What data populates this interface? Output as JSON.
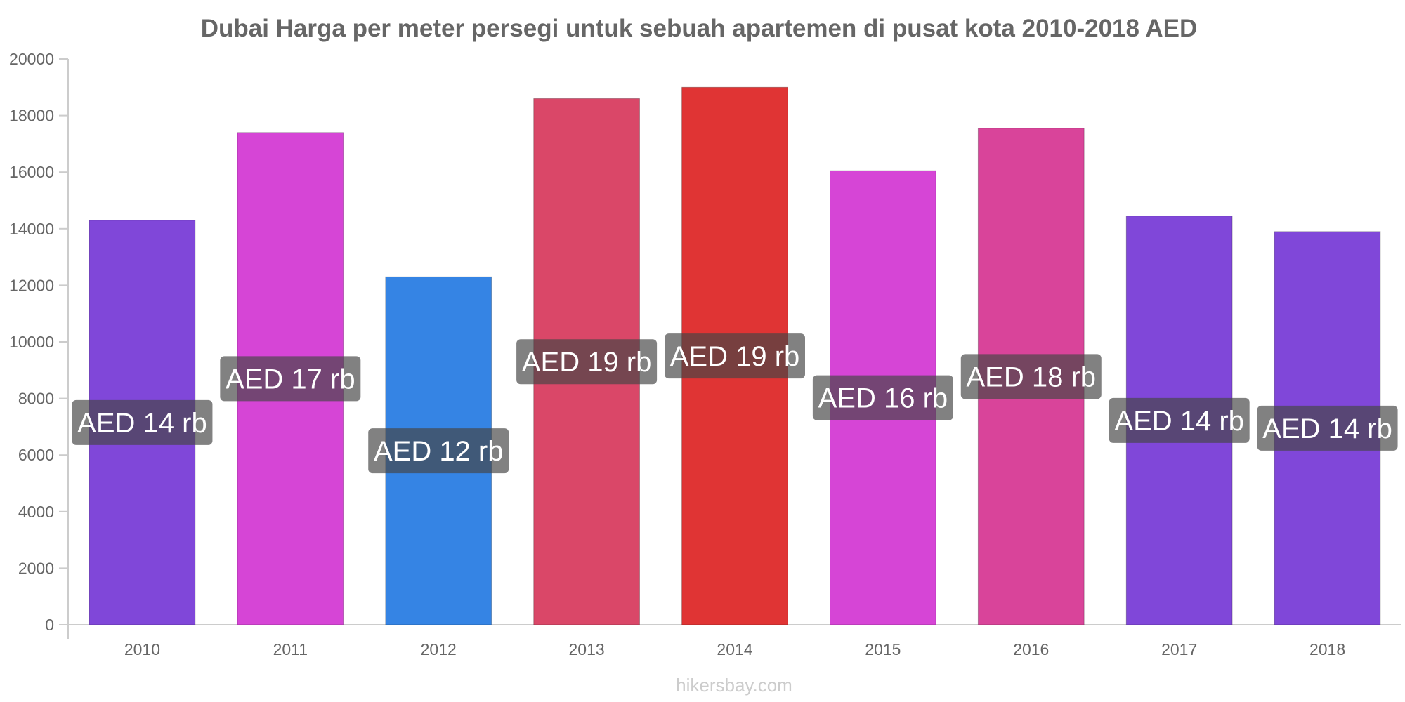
{
  "chart_data": {
    "type": "bar",
    "title": "Dubai Harga per meter persegi untuk sebuah apartemen di pusat kota 2010-2018 AED",
    "categories": [
      "2010",
      "2011",
      "2012",
      "2013",
      "2014",
      "2015",
      "2016",
      "2017",
      "2018"
    ],
    "values": [
      14300,
      17400,
      12300,
      18600,
      19000,
      16050,
      17550,
      14450,
      13900
    ],
    "data_labels": [
      "AED 14 rb",
      "AED 17 rb",
      "AED 12 rb",
      "AED 19 rb",
      "AED 19 rb",
      "AED 16 rb",
      "AED 18 rb",
      "AED 14 rb",
      "AED 14 rb"
    ],
    "colors": [
      "#8047d9",
      "#d645d6",
      "#3584e4",
      "#da4768",
      "#e03434",
      "#d645d6",
      "#d9449a",
      "#8047d9",
      "#8047d9"
    ],
    "yticks": [
      "0",
      "2000",
      "4000",
      "6000",
      "8000",
      "10000",
      "12000",
      "14000",
      "16000",
      "18000",
      "20000"
    ],
    "ylim": [
      0,
      20000
    ],
    "xlabel": "",
    "ylabel": "",
    "grid": false,
    "watermark": "hikersbay.com"
  }
}
